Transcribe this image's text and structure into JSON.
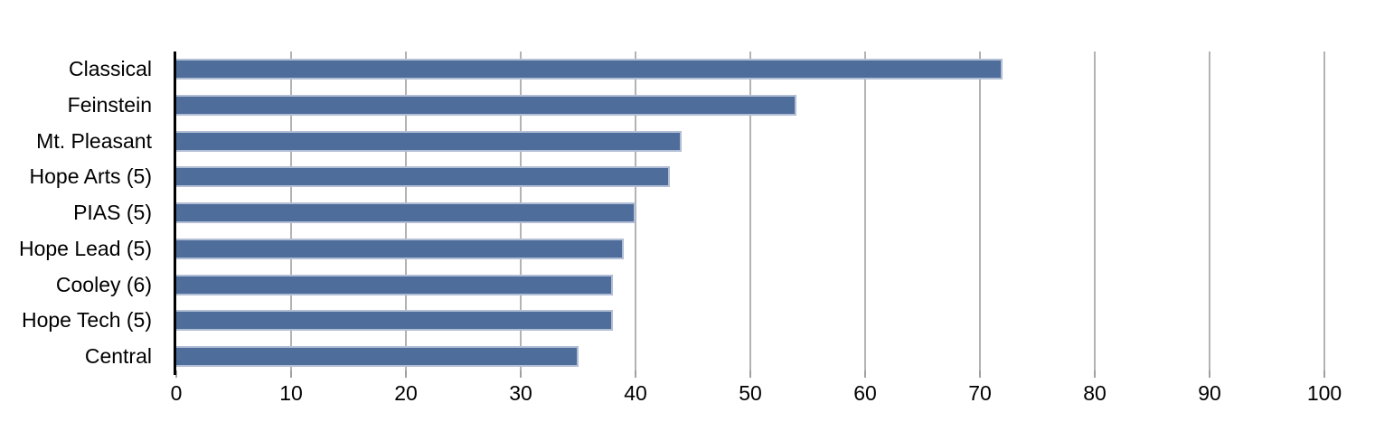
{
  "chart_data": {
    "type": "bar",
    "orientation": "horizontal",
    "title": "",
    "xlabel": "",
    "ylabel": "",
    "categories": [
      "Classical",
      "Feinstein",
      "Mt. Pleasant",
      "Hope Arts (5)",
      "PIAS (5)",
      "Hope Lead (5)",
      "Cooley (6)",
      "Hope Tech (5)",
      "Central"
    ],
    "values": [
      72,
      54,
      44,
      43,
      40,
      39,
      38,
      38,
      35
    ],
    "xlim": [
      0,
      100
    ],
    "x_ticks": [
      0,
      10,
      20,
      30,
      40,
      50,
      60,
      70,
      80,
      90,
      100
    ],
    "grid": true,
    "legend": false,
    "colors": {
      "bar_fill": "#4e6d9b",
      "bar_border": "#b2bed5",
      "gridline": "#b3b3b3",
      "tick": "#a0a0a0",
      "axis": "#000000",
      "text": "#000000",
      "background": "#ffffff"
    }
  }
}
